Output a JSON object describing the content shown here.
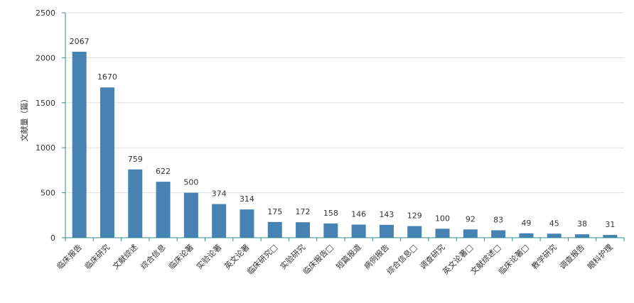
{
  "chart_data": {
    "type": "bar",
    "ylabel": "文献量（篇）",
    "xlabel": "",
    "title": "",
    "ylim": [
      0,
      2500
    ],
    "yticks": [
      0,
      500,
      1000,
      1500,
      2000,
      2500
    ],
    "grid": true,
    "bar_color": "#4682b4",
    "axis_color": "#2e8b8b",
    "categories": [
      "临床报告",
      "临床研究",
      "文献综述",
      "综合信息",
      "临床论著",
      "实验论著",
      "英文论著",
      "临床研究□",
      "实验研究",
      "临床报告□",
      "短篇报道",
      "病例报告",
      "综合信息□",
      "调查研究",
      "英文论著□",
      "文献综述□",
      "临床论著□",
      "教学研究",
      "调查报告",
      "眼科护理"
    ],
    "values": [
      2067,
      1670,
      759,
      622,
      500,
      374,
      314,
      175,
      172,
      158,
      146,
      143,
      129,
      100,
      92,
      83,
      49,
      45,
      38,
      31
    ]
  }
}
